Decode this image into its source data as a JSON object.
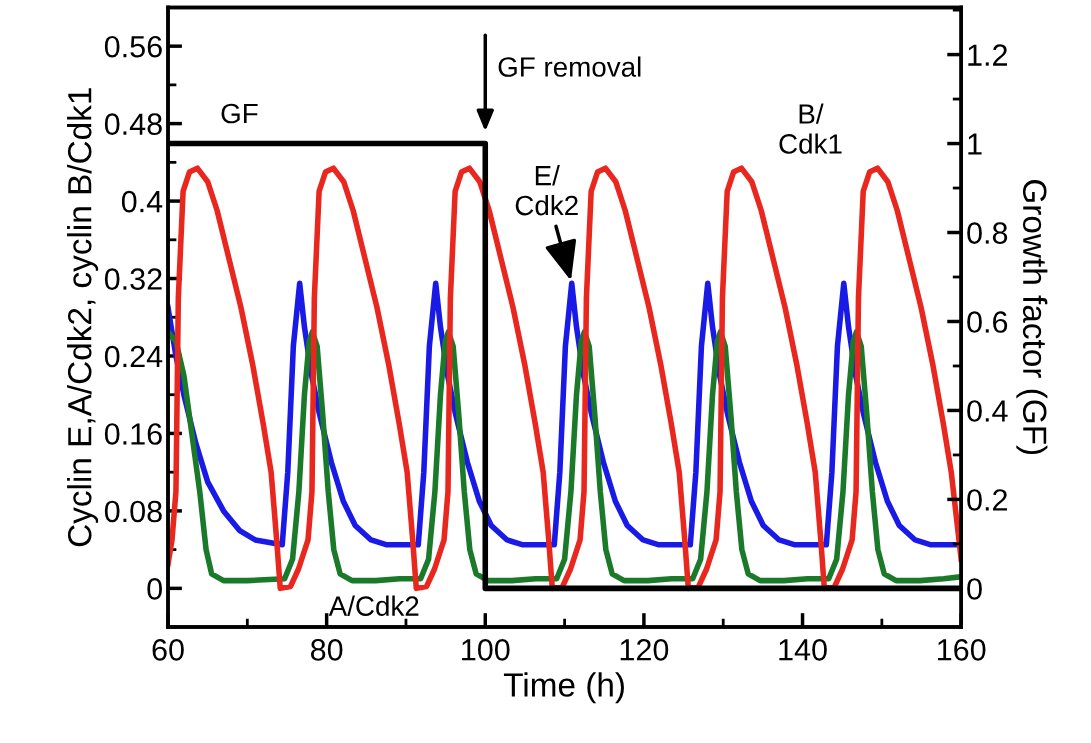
{
  "chart_data": {
    "type": "line",
    "xlabel": "Time (h)",
    "ylabel": "Cyclin E,A/Cdk2, cyclin B/Cdk1",
    "y2label": "Growth factor (GF)",
    "xlim": [
      60,
      160
    ],
    "xticks": [
      60,
      80,
      100,
      120,
      140,
      160
    ],
    "ylim": [
      -0.04,
      0.6
    ],
    "yticks": [
      0,
      0.08,
      0.16,
      0.24,
      0.32,
      0.4,
      0.48,
      0.56
    ],
    "y2lim": [
      -0.087,
      1.306
    ],
    "y2ticks": [
      0,
      0.2,
      0.4,
      0.6,
      0.8,
      1,
      1.2
    ],
    "grid": false,
    "marker": "none",
    "line_style": "solid",
    "series": [
      {
        "color": "#1a1ae6",
        "x": [
          60,
          61,
          62,
          63.5,
          65,
          67,
          69,
          71,
          74.4,
          75.1,
          75.8,
          76.6,
          77.2,
          78.1,
          79.1,
          80.6,
          82.1,
          83.6,
          85.6,
          87.6,
          91.55,
          92.25,
          92.95,
          93.75,
          94.35,
          95.25,
          96.25,
          97.75,
          99.25,
          100.75,
          102.75,
          104.75,
          108.7,
          109.4,
          110.1,
          110.9,
          111.5,
          112.4,
          113.4,
          114.9,
          116.4,
          117.9,
          119.9,
          121.9,
          125.85,
          126.55,
          127.25,
          128.05,
          128.65,
          129.55,
          130.55,
          132.05,
          133.55,
          135.05,
          137.05,
          139.05,
          143,
          143.7,
          144.4,
          145.2,
          145.8,
          146.7,
          147.7,
          149.2,
          150.7,
          152.2,
          154.2,
          156.2,
          160
        ],
        "values": [
          0.29,
          0.24,
          0.2,
          0.15,
          0.11,
          0.08,
          0.06,
          0.05,
          0.045,
          0.12,
          0.25,
          0.315,
          0.27,
          0.22,
          0.18,
          0.13,
          0.09,
          0.065,
          0.05,
          0.045,
          0.045,
          0.12,
          0.25,
          0.315,
          0.27,
          0.22,
          0.18,
          0.13,
          0.09,
          0.065,
          0.05,
          0.045,
          0.045,
          0.12,
          0.25,
          0.315,
          0.27,
          0.22,
          0.18,
          0.13,
          0.09,
          0.065,
          0.05,
          0.045,
          0.045,
          0.12,
          0.25,
          0.315,
          0.27,
          0.22,
          0.18,
          0.13,
          0.09,
          0.065,
          0.05,
          0.045,
          0.045,
          0.12,
          0.25,
          0.315,
          0.27,
          0.22,
          0.18,
          0.13,
          0.09,
          0.065,
          0.05,
          0.045,
          0.045
        ]
      },
      {
        "color": "#1a7a2a",
        "x": [
          60,
          61,
          62,
          63,
          64,
          64.8,
          65.5,
          67,
          70,
          74.7,
          75.7,
          76.5,
          77.2,
          77.8,
          78.2,
          78.8,
          79.5,
          80.2,
          80.9,
          81.7,
          83.2,
          86.2,
          89.2,
          91.85,
          92.85,
          93.65,
          94.35,
          94.95,
          95.35,
          95.95,
          96.65,
          97.35,
          98.05,
          98.85,
          100.35,
          103.35,
          106.35,
          109,
          110,
          110.8,
          111.5,
          112.1,
          112.5,
          113.1,
          113.8,
          114.5,
          115.2,
          116,
          117.5,
          120.5,
          123.5,
          126.15,
          127.15,
          127.95,
          128.65,
          129.25,
          129.65,
          130.25,
          130.95,
          131.65,
          132.35,
          133.15,
          134.65,
          137.65,
          140.65,
          143.3,
          144.3,
          145.1,
          145.8,
          146.4,
          146.8,
          147.4,
          148.1,
          148.8,
          149.5,
          150.3,
          151.8,
          154.8,
          157.8,
          160
        ],
        "values": [
          0.265,
          0.255,
          0.22,
          0.16,
          0.1,
          0.04,
          0.015,
          0.008,
          0.008,
          0.01,
          0.03,
          0.1,
          0.2,
          0.255,
          0.265,
          0.25,
          0.18,
          0.1,
          0.04,
          0.015,
          0.008,
          0.008,
          0.01,
          0.01,
          0.03,
          0.1,
          0.2,
          0.255,
          0.265,
          0.25,
          0.18,
          0.1,
          0.04,
          0.015,
          0.008,
          0.008,
          0.01,
          0.01,
          0.03,
          0.1,
          0.2,
          0.255,
          0.265,
          0.25,
          0.18,
          0.1,
          0.04,
          0.015,
          0.008,
          0.008,
          0.01,
          0.01,
          0.03,
          0.1,
          0.2,
          0.255,
          0.265,
          0.25,
          0.18,
          0.1,
          0.04,
          0.015,
          0.008,
          0.008,
          0.01,
          0.01,
          0.03,
          0.1,
          0.2,
          0.255,
          0.265,
          0.25,
          0.18,
          0.1,
          0.04,
          0.015,
          0.008,
          0.008,
          0.01,
          0.012
        ]
      },
      {
        "color": "#e8281e",
        "x": [
          60,
          60.5,
          61.0,
          61.3,
          61.9,
          62.7,
          63.7,
          65.0,
          66.2,
          67.7,
          69.2,
          70.7,
          72.0,
          73.0,
          73.7,
          74.15,
          75.45,
          76.45,
          77.65,
          78.15,
          78.45,
          79.05,
          79.85,
          80.85,
          82.15,
          83.35,
          84.85,
          86.35,
          87.85,
          89.15,
          90.15,
          90.85,
          91.3,
          92.6,
          93.6,
          94.8,
          95.3,
          95.6,
          96.2,
          97.0,
          98.0,
          99.3,
          100.5,
          102.0,
          103.5,
          105.0,
          106.3,
          107.3,
          108.0,
          108.45,
          109.75,
          110.75,
          111.95,
          112.45,
          112.75,
          113.35,
          114.15,
          115.15,
          116.45,
          117.65,
          119.15,
          120.65,
          122.15,
          123.45,
          124.45,
          125.15,
          125.6,
          126.9,
          127.9,
          129.1,
          129.6,
          129.9,
          130.5,
          131.3,
          132.3,
          133.6,
          134.8,
          136.3,
          137.8,
          139.3,
          140.6,
          141.6,
          142.3,
          142.75,
          144.05,
          145.05,
          146.25,
          146.75,
          147.05,
          147.65,
          148.45,
          149.45,
          150.75,
          151.95,
          153.45,
          154.95,
          156.45,
          157.75,
          158.75,
          160
        ],
        "values": [
          0.025,
          0.05,
          0.1,
          0.3,
          0.41,
          0.43,
          0.434,
          0.42,
          0.39,
          0.34,
          0.29,
          0.23,
          0.17,
          0.12,
          0.05,
          0.0,
          0.002,
          0.02,
          0.05,
          0.1,
          0.3,
          0.41,
          0.43,
          0.434,
          0.42,
          0.39,
          0.34,
          0.29,
          0.23,
          0.17,
          0.12,
          0.05,
          0.0,
          0.002,
          0.02,
          0.05,
          0.1,
          0.3,
          0.41,
          0.43,
          0.434,
          0.42,
          0.39,
          0.34,
          0.29,
          0.23,
          0.17,
          0.12,
          0.05,
          0.0,
          0.002,
          0.02,
          0.05,
          0.1,
          0.3,
          0.41,
          0.43,
          0.434,
          0.42,
          0.39,
          0.34,
          0.29,
          0.23,
          0.17,
          0.12,
          0.05,
          0.0,
          0.002,
          0.02,
          0.05,
          0.1,
          0.3,
          0.41,
          0.43,
          0.434,
          0.42,
          0.39,
          0.34,
          0.29,
          0.23,
          0.17,
          0.12,
          0.05,
          0.0,
          0.002,
          0.02,
          0.05,
          0.1,
          0.3,
          0.41,
          0.43,
          0.434,
          0.42,
          0.39,
          0.34,
          0.29,
          0.23,
          0.17,
          0.12,
          0.03
        ]
      },
      {
        "type": "step",
        "axis": "y2",
        "color": "#000000",
        "x": [
          60,
          100,
          160
        ],
        "values": [
          1,
          0,
          0
        ]
      }
    ],
    "annotations": [
      "GF",
      "GF removal",
      {
        "text": "E/\nCdk2",
        "x": 110.9,
        "y": 0.315
      },
      "B/\nCdk1",
      "A/Cdk2"
    ]
  }
}
